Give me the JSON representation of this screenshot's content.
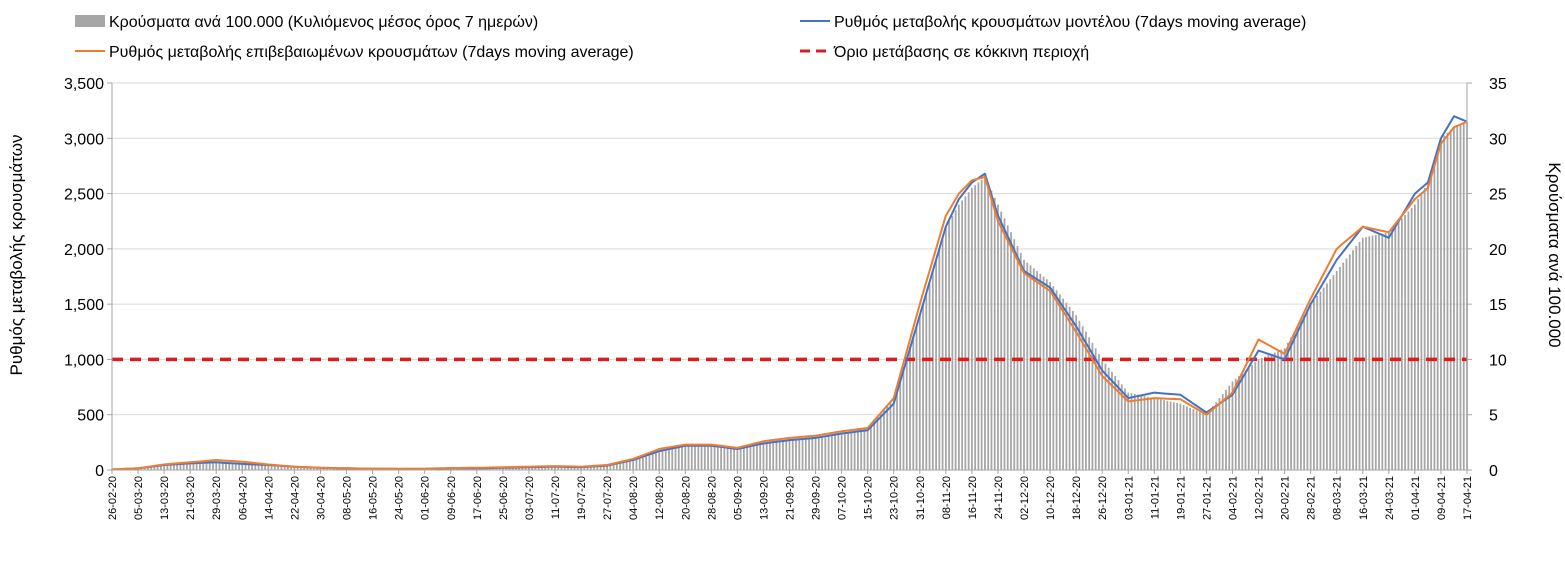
{
  "chart_data": {
    "type": "bar+line",
    "title": "",
    "legend": [
      {
        "key": "bars",
        "label": "Κρούσματα ανά 100.000 (Κυλιόμενος μέσος όρος 7 ημερών)",
        "color": "#a6a6a6"
      },
      {
        "key": "model",
        "label": "Ρυθμός μεταβολής κρουσμάτων μοντέλου (7days moving average)",
        "color": "#4472c4"
      },
      {
        "key": "confirmed",
        "label": "Ρυθμός μεταβολής επιβεβαιωμένων κρουσμάτων (7days moving average)",
        "color": "#ed7d31"
      },
      {
        "key": "threshold",
        "label": "Όριο μετάβασης σε κόκκινη περιοχή",
        "color": "#e31a1c"
      }
    ],
    "ylabel_left": "Ρυθμός μεταβολής κρουσμάτων",
    "ylabel_right": "Κρούσματα ανά 100.000",
    "ylim_left": [
      0,
      3500
    ],
    "ylim_right": [
      0,
      35
    ],
    "yticks_left": [
      "0",
      "500",
      "1,000",
      "1,500",
      "2,000",
      "2,500",
      "3,000",
      "3,500"
    ],
    "yticks_right": [
      "0",
      "5",
      "10",
      "15",
      "20",
      "25",
      "30",
      "35"
    ],
    "threshold_value": 1000,
    "xtick_labels": [
      "26-02-20",
      "05-03-20",
      "13-03-20",
      "21-03-20",
      "29-03-20",
      "06-04-20",
      "14-04-20",
      "22-04-20",
      "30-04-20",
      "08-05-20",
      "16-05-20",
      "24-05-20",
      "01-06-20",
      "09-06-20",
      "17-06-20",
      "25-06-20",
      "03-07-20",
      "11-07-20",
      "19-07-20",
      "27-07-20",
      "04-08-20",
      "12-08-20",
      "20-08-20",
      "28-08-20",
      "05-09-20",
      "13-09-20",
      "21-09-20",
      "29-09-20",
      "07-10-20",
      "15-10-20",
      "23-10-20",
      "31-10-20",
      "08-11-20",
      "16-11-20",
      "24-11-20",
      "02-12-20",
      "10-12-20",
      "18-12-20",
      "26-12-20",
      "03-01-21",
      "11-01-21",
      "19-01-21",
      "27-01-21",
      "04-02-21",
      "12-02-21",
      "20-02-21",
      "28-02-21",
      "08-03-21",
      "16-03-21",
      "24-03-21",
      "01-04-21",
      "09-04-21",
      "17-04-21"
    ],
    "series_days": [
      0,
      8,
      16,
      24,
      32,
      40,
      48,
      56,
      64,
      72,
      80,
      88,
      96,
      104,
      112,
      120,
      128,
      136,
      144,
      152,
      160,
      168,
      176,
      184,
      192,
      200,
      208,
      216,
      224,
      232,
      240,
      248,
      256,
      260,
      264,
      268,
      272,
      280,
      288,
      296,
      304,
      312,
      320,
      328,
      336,
      344,
      352,
      360,
      368,
      376,
      384,
      392,
      400,
      404,
      408,
      412,
      416
    ],
    "bars_per_100k": [
      0.1,
      0.2,
      0.4,
      0.6,
      0.7,
      0.6,
      0.4,
      0.3,
      0.2,
      0.15,
      0.15,
      0.1,
      0.1,
      0.1,
      0.15,
      0.2,
      0.3,
      0.35,
      0.3,
      0.4,
      0.8,
      1.6,
      2.2,
      2.2,
      1.9,
      2.5,
      2.8,
      3.0,
      3.3,
      3.8,
      6.5,
      14.0,
      22.0,
      24.0,
      25.5,
      26.5,
      24.0,
      19.0,
      17.0,
      14.0,
      10.0,
      7.0,
      6.5,
      6.0,
      5.0,
      8.0,
      10.0,
      11.0,
      15.0,
      18.0,
      21.0,
      21.5,
      24.0,
      26.0,
      30.0,
      31.0,
      31.5
    ],
    "model_rate": [
      5,
      15,
      45,
      60,
      70,
      55,
      45,
      30,
      20,
      15,
      12,
      10,
      10,
      15,
      15,
      20,
      25,
      30,
      25,
      40,
      90,
      170,
      220,
      220,
      190,
      240,
      270,
      290,
      330,
      360,
      600,
      1400,
      2200,
      2450,
      2600,
      2680,
      2300,
      1800,
      1650,
      1300,
      900,
      650,
      700,
      680,
      520,
      680,
      1080,
      1000,
      1500,
      1900,
      2200,
      2100,
      2500,
      2600,
      3000,
      3200,
      3150
    ],
    "confirmed_rate": [
      5,
      15,
      50,
      70,
      90,
      75,
      50,
      30,
      20,
      15,
      12,
      10,
      12,
      18,
      20,
      25,
      30,
      35,
      30,
      45,
      100,
      190,
      230,
      230,
      200,
      260,
      290,
      310,
      350,
      380,
      650,
      1500,
      2300,
      2500,
      2620,
      2650,
      2250,
      1780,
      1620,
      1250,
      850,
      620,
      650,
      640,
      500,
      700,
      1180,
      1050,
      1550,
      2000,
      2200,
      2150,
      2450,
      2550,
      2950,
      3100,
      3150
    ]
  }
}
